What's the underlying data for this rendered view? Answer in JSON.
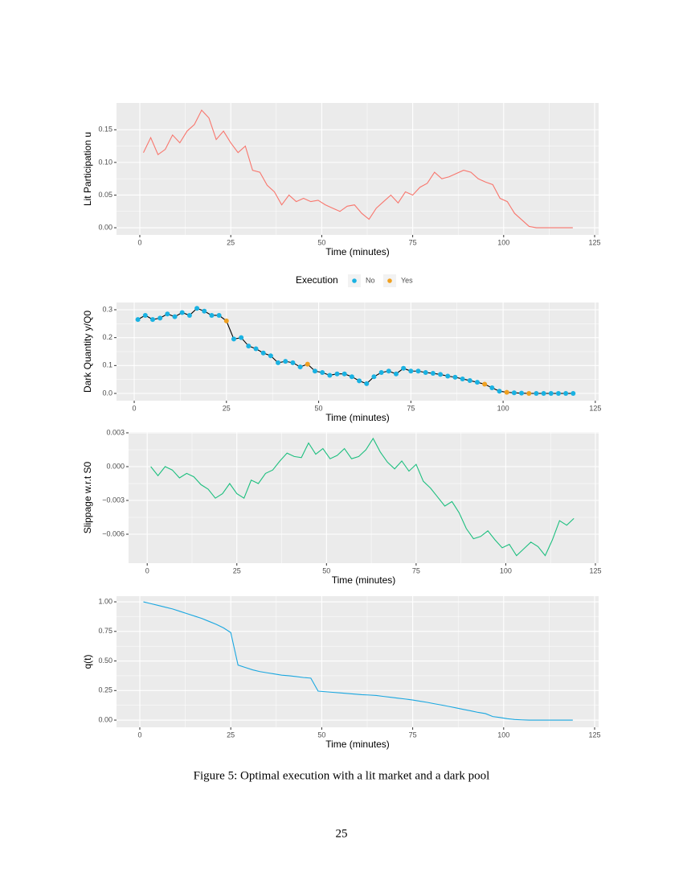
{
  "chart_data": [
    {
      "type": "line",
      "y_label": "Lit Participation u",
      "x_label": "Time (minutes)",
      "color": "#F8766D",
      "grid": true,
      "minor_grid": true,
      "x": [
        1,
        3,
        5,
        7,
        9,
        11,
        13,
        15,
        17,
        19,
        21,
        23,
        25,
        27,
        29,
        31,
        33,
        35,
        37,
        39,
        41,
        43,
        45,
        47,
        49,
        51,
        53,
        55,
        57,
        59,
        61,
        63,
        65,
        67,
        69,
        71,
        73,
        75,
        77,
        79,
        81,
        83,
        85,
        87,
        89,
        91,
        93,
        95,
        97,
        99,
        101,
        103,
        105,
        107,
        109,
        111,
        113,
        115,
        117,
        119
      ],
      "values": [
        0.115,
        0.138,
        0.112,
        0.12,
        0.142,
        0.13,
        0.148,
        0.158,
        0.18,
        0.168,
        0.135,
        0.148,
        0.13,
        0.115,
        0.125,
        0.088,
        0.085,
        0.065,
        0.055,
        0.035,
        0.05,
        0.04,
        0.045,
        0.04,
        0.042,
        0.035,
        0.03,
        0.025,
        0.033,
        0.035,
        0.022,
        0.013,
        0.03,
        0.04,
        0.05,
        0.038,
        0.055,
        0.05,
        0.062,
        0.068,
        0.085,
        0.075,
        0.078,
        0.083,
        0.088,
        0.085,
        0.075,
        0.07,
        0.066,
        0.045,
        0.04,
        0.022,
        0.012,
        0.002,
        0,
        0,
        0,
        0,
        0,
        0
      ],
      "xlim": [
        -6.4,
        126.1
      ],
      "xticks": [
        0,
        25,
        50,
        75,
        100,
        125
      ],
      "ylim": [
        -0.011,
        0.191
      ],
      "yticks": [
        {
          "value": 0,
          "label": "0.00"
        },
        0.05,
        {
          "value": 0.1,
          "label": "0.10"
        },
        0.15
      ]
    },
    {
      "type": "line",
      "marker": true,
      "y_label": "Dark Quantity y/Q0",
      "x_label": "Time (minutes)",
      "color": "#000000",
      "grid": true,
      "minor_grid": true,
      "legend": {
        "title": "Execution",
        "position": "top",
        "entries": [
          {
            "name": "No",
            "color": "#1AB2E2"
          },
          {
            "name": "Yes",
            "color": "#F0A020"
          }
        ]
      },
      "x": [
        1,
        3,
        5,
        7,
        9,
        11,
        13,
        15,
        17,
        19,
        21,
        23,
        25,
        27,
        29,
        31,
        33,
        35,
        37,
        39,
        41,
        43,
        45,
        47,
        49,
        51,
        53,
        55,
        57,
        59,
        61,
        63,
        65,
        67,
        69,
        71,
        73,
        75,
        77,
        79,
        81,
        83,
        85,
        87,
        89,
        91,
        93,
        95,
        97,
        99,
        101,
        103,
        105,
        107,
        109,
        111,
        113,
        115,
        117,
        119
      ],
      "values": [
        0.265,
        0.28,
        0.265,
        0.27,
        0.285,
        0.275,
        0.29,
        0.28,
        0.305,
        0.295,
        0.28,
        0.28,
        0.26,
        0.195,
        0.2,
        0.17,
        0.16,
        0.145,
        0.135,
        0.11,
        0.115,
        0.11,
        0.095,
        0.105,
        0.08,
        0.075,
        0.065,
        0.07,
        0.07,
        0.06,
        0.045,
        0.035,
        0.06,
        0.075,
        0.08,
        0.07,
        0.09,
        0.08,
        0.08,
        0.075,
        0.072,
        0.068,
        0.062,
        0.058,
        0.052,
        0.046,
        0.04,
        0.033,
        0.02,
        0.008,
        0.004,
        0.002,
        0.001,
        0,
        0,
        0,
        0,
        0,
        0,
        0
      ],
      "executed": [
        false,
        false,
        false,
        false,
        false,
        false,
        false,
        false,
        false,
        false,
        false,
        false,
        true,
        false,
        false,
        false,
        false,
        false,
        false,
        false,
        false,
        false,
        false,
        true,
        false,
        false,
        false,
        false,
        false,
        false,
        false,
        false,
        false,
        false,
        false,
        false,
        false,
        false,
        false,
        false,
        false,
        false,
        false,
        false,
        false,
        false,
        false,
        true,
        false,
        false,
        true,
        false,
        false,
        true,
        false,
        false,
        false,
        false,
        false,
        false
      ],
      "xlim": [
        -4.8,
        125.9
      ],
      "xticks": [
        0,
        25,
        50,
        75,
        100,
        125
      ],
      "ylim": [
        -0.026,
        0.326
      ],
      "yticks": [
        {
          "value": 0,
          "label": "0.0"
        },
        0.1,
        0.2,
        0.3
      ]
    },
    {
      "type": "line",
      "y_label": "Slippage w.r.t S0",
      "x_label": "Time (minutes)",
      "color": "#1DBF7F",
      "grid": true,
      "minor_grid": true,
      "x": [
        1,
        3,
        5,
        7,
        9,
        11,
        13,
        15,
        17,
        19,
        21,
        23,
        25,
        27,
        29,
        31,
        33,
        35,
        37,
        39,
        41,
        43,
        45,
        47,
        49,
        51,
        53,
        55,
        57,
        59,
        61,
        63,
        65,
        67,
        69,
        71,
        73,
        75,
        77,
        79,
        81,
        83,
        85,
        87,
        89,
        91,
        93,
        95,
        97,
        99,
        101,
        103,
        105,
        107,
        109,
        111,
        113,
        115,
        117,
        119
      ],
      "values": [
        0,
        -0.0008,
        0,
        -0.0003,
        -0.001,
        -0.0006,
        -0.0009,
        -0.0016,
        -0.002,
        -0.0028,
        -0.0024,
        -0.0015,
        -0.0024,
        -0.0028,
        -0.0012,
        -0.0015,
        -0.0006,
        -0.0003,
        0.0005,
        0.0012,
        0.0009,
        0.0008,
        0.0021,
        0.0011,
        0.0016,
        0.0007,
        0.001,
        0.0016,
        0.0007,
        0.0009,
        0.0015,
        0.0025,
        0.0013,
        0.0004,
        -0.0002,
        0.0005,
        -0.0004,
        0.0002,
        -0.0013,
        -0.0019,
        -0.0027,
        -0.0035,
        -0.0031,
        -0.0041,
        -0.0055,
        -0.0064,
        -0.0062,
        -0.0057,
        -0.0065,
        -0.0072,
        -0.0069,
        -0.0079,
        -0.0073,
        -0.0067,
        -0.0071,
        -0.0079,
        -0.0065,
        -0.0048,
        -0.0052,
        -0.0046
      ],
      "xlim": [
        -5.2,
        125.9
      ],
      "xticks": [
        0,
        25,
        50,
        75,
        100,
        125
      ],
      "ylim": [
        -0.00857,
        0.00307
      ],
      "yticks": [
        {
          "value": -0.006,
          "label": "−0.006"
        },
        {
          "value": -0.003,
          "label": "−0.003"
        },
        {
          "value": 0,
          "label": "0.000"
        },
        0.003
      ]
    },
    {
      "type": "line",
      "y_label": "q(t)",
      "x_label": "Time (minutes)",
      "color": "#1AA7E0",
      "grid": true,
      "minor_grid": true,
      "x": [
        1,
        3,
        5,
        7,
        9,
        11,
        13,
        15,
        17,
        19,
        21,
        23,
        25,
        27,
        29,
        31,
        33,
        35,
        37,
        39,
        41,
        43,
        45,
        47,
        49,
        51,
        53,
        55,
        57,
        59,
        61,
        63,
        65,
        67,
        69,
        71,
        73,
        75,
        77,
        79,
        81,
        83,
        85,
        87,
        89,
        91,
        93,
        95,
        97,
        99,
        101,
        103,
        105,
        107,
        109,
        111,
        113,
        115,
        117,
        119
      ],
      "values": [
        1,
        0.985,
        0.97,
        0.955,
        0.94,
        0.92,
        0.9,
        0.88,
        0.86,
        0.835,
        0.81,
        0.78,
        0.74,
        0.465,
        0.445,
        0.425,
        0.41,
        0.4,
        0.39,
        0.38,
        0.375,
        0.368,
        0.36,
        0.355,
        0.245,
        0.24,
        0.235,
        0.23,
        0.225,
        0.22,
        0.215,
        0.212,
        0.208,
        0.2,
        0.193,
        0.185,
        0.178,
        0.17,
        0.16,
        0.15,
        0.138,
        0.127,
        0.115,
        0.103,
        0.09,
        0.078,
        0.065,
        0.055,
        0.03,
        0.022,
        0.012,
        0.005,
        0.002,
        0,
        0,
        0,
        0,
        0,
        0,
        0
      ],
      "xlim": [
        -6.4,
        126.1
      ],
      "xticks": [
        0,
        25,
        50,
        75,
        100,
        125
      ],
      "ylim": [
        -0.061,
        1.048
      ],
      "yticks": [
        {
          "value": 0,
          "label": "0.00"
        },
        0.25,
        {
          "value": 0.5,
          "label": "0.50"
        },
        0.75,
        {
          "value": 1,
          "label": "1.00"
        }
      ]
    }
  ],
  "caption": "Figure 5: Optimal execution with a lit market and a dark pool",
  "page_number": "25"
}
